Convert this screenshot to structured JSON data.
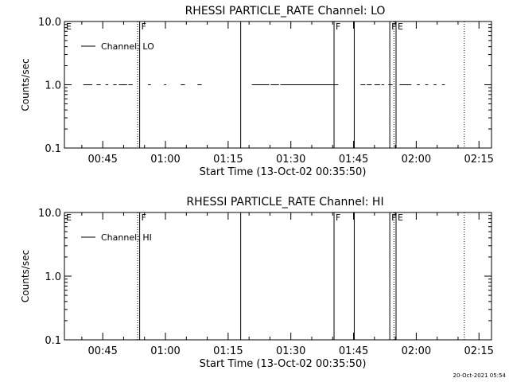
{
  "timestamp": "20-Oct-2021 05:54",
  "chart_data": [
    {
      "type": "line",
      "title": "RHESSI PARTICLE_RATE Channel: LO",
      "xlabel": "Start Time (13-Oct-02 00:35:50)",
      "ylabel": "Counts/sec",
      "y_scale": "log",
      "ylim": [
        0.1,
        10.0
      ],
      "xlim": [
        "00:35:50",
        "02:18:00"
      ],
      "x_tick_labels": [
        "00:45",
        "01:00",
        "01:15",
        "01:30",
        "01:45",
        "02:00",
        "02:15"
      ],
      "y_tick_labels": [
        "10.0",
        "1.0",
        "0.1"
      ],
      "legend": {
        "placement": "top-left",
        "entries": [
          "Channel: LO"
        ]
      },
      "series": [
        {
          "name": "Channel: LO",
          "segments": [
            {
              "x": [
                "00:40:20",
                "00:42:30"
              ],
              "y": 1.0
            },
            {
              "x": [
                "00:43:30",
                "00:44:30"
              ],
              "y": 1.0
            },
            {
              "x": [
                "00:45:40",
                "00:46:20"
              ],
              "y": 1.0
            },
            {
              "x": [
                "00:47:30",
                "00:48:20"
              ],
              "y": 1.0
            },
            {
              "x": [
                "00:48:50",
                "00:50:50"
              ],
              "y": 1.0
            },
            {
              "x": [
                "00:51:10",
                "00:52:10"
              ],
              "y": 1.0
            },
            {
              "x": [
                "00:55:50",
                "00:56:30"
              ],
              "y": 1.0
            },
            {
              "x": [
                "00:59:40",
                "01:00:10"
              ],
              "y": 1.0
            },
            {
              "x": [
                "01:03:40",
                "01:04:40"
              ],
              "y": 1.0
            },
            {
              "x": [
                "01:07:40",
                "01:08:40"
              ],
              "y": 1.0
            },
            {
              "x": [
                "01:20:40",
                "01:24:50"
              ],
              "y": 1.0
            },
            {
              "x": [
                "01:25:10",
                "01:27:10"
              ],
              "y": 1.0
            },
            {
              "x": [
                "01:27:30",
                "01:41:20"
              ],
              "y": 1.0
            },
            {
              "x": [
                "01:46:40",
                "01:47:50"
              ],
              "y": 1.0
            },
            {
              "x": [
                "01:48:10",
                "01:49:20"
              ],
              "y": 1.0
            },
            {
              "x": [
                "01:50:00",
                "01:51:20"
              ],
              "y": 1.0
            },
            {
              "x": [
                "01:51:40",
                "01:52:20"
              ],
              "y": 1.0
            },
            {
              "x": [
                "01:53:20",
                "01:54:20"
              ],
              "y": 1.0
            },
            {
              "x": [
                "01:56:00",
                "01:58:50"
              ],
              "y": 1.0
            },
            {
              "x": [
                "02:00:10",
                "02:00:50"
              ],
              "y": 1.0
            },
            {
              "x": [
                "02:02:10",
                "02:02:50"
              ],
              "y": 1.0
            },
            {
              "x": [
                "02:04:10",
                "02:04:50"
              ],
              "y": 1.0
            },
            {
              "x": [
                "02:06:10",
                "02:06:50"
              ],
              "y": 1.0
            }
          ]
        }
      ],
      "vertical_markers": [
        {
          "x": "00:53:20",
          "style": "dotted",
          "label": ""
        },
        {
          "x": "00:53:50",
          "style": "solid",
          "label": "F"
        },
        {
          "x": "01:18:00",
          "style": "solid",
          "label": ""
        },
        {
          "x": "01:40:20",
          "style": "solid",
          "label": "F"
        },
        {
          "x": "01:45:10",
          "style": "solid",
          "label": ""
        },
        {
          "x": "01:53:40",
          "style": "solid",
          "label": "F"
        },
        {
          "x": "01:54:40",
          "style": "dotted",
          "label": ""
        },
        {
          "x": "01:55:10",
          "style": "solid",
          "label": "E"
        },
        {
          "x": "02:11:30",
          "style": "dotted",
          "label": ""
        }
      ],
      "edge_labels": [
        "E"
      ]
    },
    {
      "type": "line",
      "title": "RHESSI PARTICLE_RATE Channel: HI",
      "xlabel": "Start Time (13-Oct-02 00:35:50)",
      "ylabel": "Counts/sec",
      "y_scale": "log",
      "ylim": [
        0.1,
        10.0
      ],
      "xlim": [
        "00:35:50",
        "02:18:00"
      ],
      "x_tick_labels": [
        "00:45",
        "01:00",
        "01:15",
        "01:30",
        "01:45",
        "02:00",
        "02:15"
      ],
      "y_tick_labels": [
        "10.0",
        "1.0",
        "0.1"
      ],
      "legend": {
        "placement": "top-left",
        "entries": [
          "Channel: HI"
        ]
      },
      "series": [
        {
          "name": "Channel: HI",
          "segments": []
        }
      ],
      "vertical_markers": [
        {
          "x": "00:53:20",
          "style": "dotted",
          "label": ""
        },
        {
          "x": "00:53:50",
          "style": "solid",
          "label": "F"
        },
        {
          "x": "01:18:00",
          "style": "solid",
          "label": ""
        },
        {
          "x": "01:40:20",
          "style": "solid",
          "label": "F"
        },
        {
          "x": "01:45:10",
          "style": "solid",
          "label": ""
        },
        {
          "x": "01:53:40",
          "style": "solid",
          "label": "F"
        },
        {
          "x": "01:54:40",
          "style": "dotted",
          "label": ""
        },
        {
          "x": "01:55:10",
          "style": "solid",
          "label": "E"
        },
        {
          "x": "02:11:30",
          "style": "dotted",
          "label": ""
        }
      ],
      "edge_labels": [
        "E"
      ]
    }
  ]
}
